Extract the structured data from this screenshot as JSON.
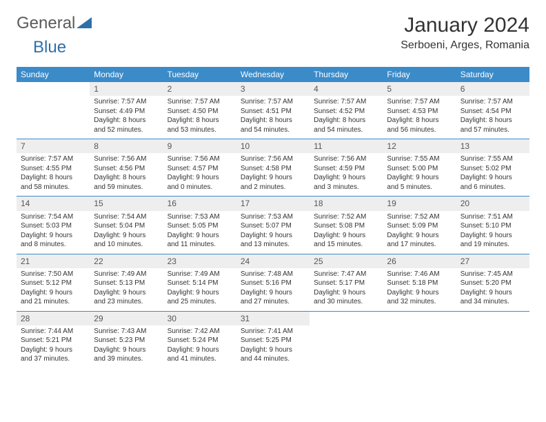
{
  "logo": {
    "text_gray": "General",
    "text_blue": "Blue"
  },
  "header": {
    "month_title": "January 2024",
    "location": "Serboeni, Arges, Romania"
  },
  "colors": {
    "header_bar": "#3b8bc9",
    "header_text": "#ffffff",
    "daynum_bg": "#eeeeee",
    "week_divider": "#3b8bc9",
    "logo_gray": "#5a5a5a",
    "logo_blue": "#2f6fa8",
    "body_text": "#333333",
    "background": "#ffffff"
  },
  "typography": {
    "month_title_fontsize": 30,
    "location_fontsize": 16,
    "day_header_fontsize": 12,
    "daynum_fontsize": 12,
    "cell_fontsize": 10,
    "font_family": "Arial"
  },
  "day_names": [
    "Sunday",
    "Monday",
    "Tuesday",
    "Wednesday",
    "Thursday",
    "Friday",
    "Saturday"
  ],
  "weeks": [
    [
      {
        "day": "",
        "sunrise": "",
        "sunset": "",
        "daylight": ""
      },
      {
        "day": "1",
        "sunrise": "Sunrise: 7:57 AM",
        "sunset": "Sunset: 4:49 PM",
        "daylight": "Daylight: 8 hours and 52 minutes."
      },
      {
        "day": "2",
        "sunrise": "Sunrise: 7:57 AM",
        "sunset": "Sunset: 4:50 PM",
        "daylight": "Daylight: 8 hours and 53 minutes."
      },
      {
        "day": "3",
        "sunrise": "Sunrise: 7:57 AM",
        "sunset": "Sunset: 4:51 PM",
        "daylight": "Daylight: 8 hours and 54 minutes."
      },
      {
        "day": "4",
        "sunrise": "Sunrise: 7:57 AM",
        "sunset": "Sunset: 4:52 PM",
        "daylight": "Daylight: 8 hours and 54 minutes."
      },
      {
        "day": "5",
        "sunrise": "Sunrise: 7:57 AM",
        "sunset": "Sunset: 4:53 PM",
        "daylight": "Daylight: 8 hours and 56 minutes."
      },
      {
        "day": "6",
        "sunrise": "Sunrise: 7:57 AM",
        "sunset": "Sunset: 4:54 PM",
        "daylight": "Daylight: 8 hours and 57 minutes."
      }
    ],
    [
      {
        "day": "7",
        "sunrise": "Sunrise: 7:57 AM",
        "sunset": "Sunset: 4:55 PM",
        "daylight": "Daylight: 8 hours and 58 minutes."
      },
      {
        "day": "8",
        "sunrise": "Sunrise: 7:56 AM",
        "sunset": "Sunset: 4:56 PM",
        "daylight": "Daylight: 8 hours and 59 minutes."
      },
      {
        "day": "9",
        "sunrise": "Sunrise: 7:56 AM",
        "sunset": "Sunset: 4:57 PM",
        "daylight": "Daylight: 9 hours and 0 minutes."
      },
      {
        "day": "10",
        "sunrise": "Sunrise: 7:56 AM",
        "sunset": "Sunset: 4:58 PM",
        "daylight": "Daylight: 9 hours and 2 minutes."
      },
      {
        "day": "11",
        "sunrise": "Sunrise: 7:56 AM",
        "sunset": "Sunset: 4:59 PM",
        "daylight": "Daylight: 9 hours and 3 minutes."
      },
      {
        "day": "12",
        "sunrise": "Sunrise: 7:55 AM",
        "sunset": "Sunset: 5:00 PM",
        "daylight": "Daylight: 9 hours and 5 minutes."
      },
      {
        "day": "13",
        "sunrise": "Sunrise: 7:55 AM",
        "sunset": "Sunset: 5:02 PM",
        "daylight": "Daylight: 9 hours and 6 minutes."
      }
    ],
    [
      {
        "day": "14",
        "sunrise": "Sunrise: 7:54 AM",
        "sunset": "Sunset: 5:03 PM",
        "daylight": "Daylight: 9 hours and 8 minutes."
      },
      {
        "day": "15",
        "sunrise": "Sunrise: 7:54 AM",
        "sunset": "Sunset: 5:04 PM",
        "daylight": "Daylight: 9 hours and 10 minutes."
      },
      {
        "day": "16",
        "sunrise": "Sunrise: 7:53 AM",
        "sunset": "Sunset: 5:05 PM",
        "daylight": "Daylight: 9 hours and 11 minutes."
      },
      {
        "day": "17",
        "sunrise": "Sunrise: 7:53 AM",
        "sunset": "Sunset: 5:07 PM",
        "daylight": "Daylight: 9 hours and 13 minutes."
      },
      {
        "day": "18",
        "sunrise": "Sunrise: 7:52 AM",
        "sunset": "Sunset: 5:08 PM",
        "daylight": "Daylight: 9 hours and 15 minutes."
      },
      {
        "day": "19",
        "sunrise": "Sunrise: 7:52 AM",
        "sunset": "Sunset: 5:09 PM",
        "daylight": "Daylight: 9 hours and 17 minutes."
      },
      {
        "day": "20",
        "sunrise": "Sunrise: 7:51 AM",
        "sunset": "Sunset: 5:10 PM",
        "daylight": "Daylight: 9 hours and 19 minutes."
      }
    ],
    [
      {
        "day": "21",
        "sunrise": "Sunrise: 7:50 AM",
        "sunset": "Sunset: 5:12 PM",
        "daylight": "Daylight: 9 hours and 21 minutes."
      },
      {
        "day": "22",
        "sunrise": "Sunrise: 7:49 AM",
        "sunset": "Sunset: 5:13 PM",
        "daylight": "Daylight: 9 hours and 23 minutes."
      },
      {
        "day": "23",
        "sunrise": "Sunrise: 7:49 AM",
        "sunset": "Sunset: 5:14 PM",
        "daylight": "Daylight: 9 hours and 25 minutes."
      },
      {
        "day": "24",
        "sunrise": "Sunrise: 7:48 AM",
        "sunset": "Sunset: 5:16 PM",
        "daylight": "Daylight: 9 hours and 27 minutes."
      },
      {
        "day": "25",
        "sunrise": "Sunrise: 7:47 AM",
        "sunset": "Sunset: 5:17 PM",
        "daylight": "Daylight: 9 hours and 30 minutes."
      },
      {
        "day": "26",
        "sunrise": "Sunrise: 7:46 AM",
        "sunset": "Sunset: 5:18 PM",
        "daylight": "Daylight: 9 hours and 32 minutes."
      },
      {
        "day": "27",
        "sunrise": "Sunrise: 7:45 AM",
        "sunset": "Sunset: 5:20 PM",
        "daylight": "Daylight: 9 hours and 34 minutes."
      }
    ],
    [
      {
        "day": "28",
        "sunrise": "Sunrise: 7:44 AM",
        "sunset": "Sunset: 5:21 PM",
        "daylight": "Daylight: 9 hours and 37 minutes."
      },
      {
        "day": "29",
        "sunrise": "Sunrise: 7:43 AM",
        "sunset": "Sunset: 5:23 PM",
        "daylight": "Daylight: 9 hours and 39 minutes."
      },
      {
        "day": "30",
        "sunrise": "Sunrise: 7:42 AM",
        "sunset": "Sunset: 5:24 PM",
        "daylight": "Daylight: 9 hours and 41 minutes."
      },
      {
        "day": "31",
        "sunrise": "Sunrise: 7:41 AM",
        "sunset": "Sunset: 5:25 PM",
        "daylight": "Daylight: 9 hours and 44 minutes."
      },
      {
        "day": "",
        "sunrise": "",
        "sunset": "",
        "daylight": ""
      },
      {
        "day": "",
        "sunrise": "",
        "sunset": "",
        "daylight": ""
      },
      {
        "day": "",
        "sunrise": "",
        "sunset": "",
        "daylight": ""
      }
    ]
  ]
}
